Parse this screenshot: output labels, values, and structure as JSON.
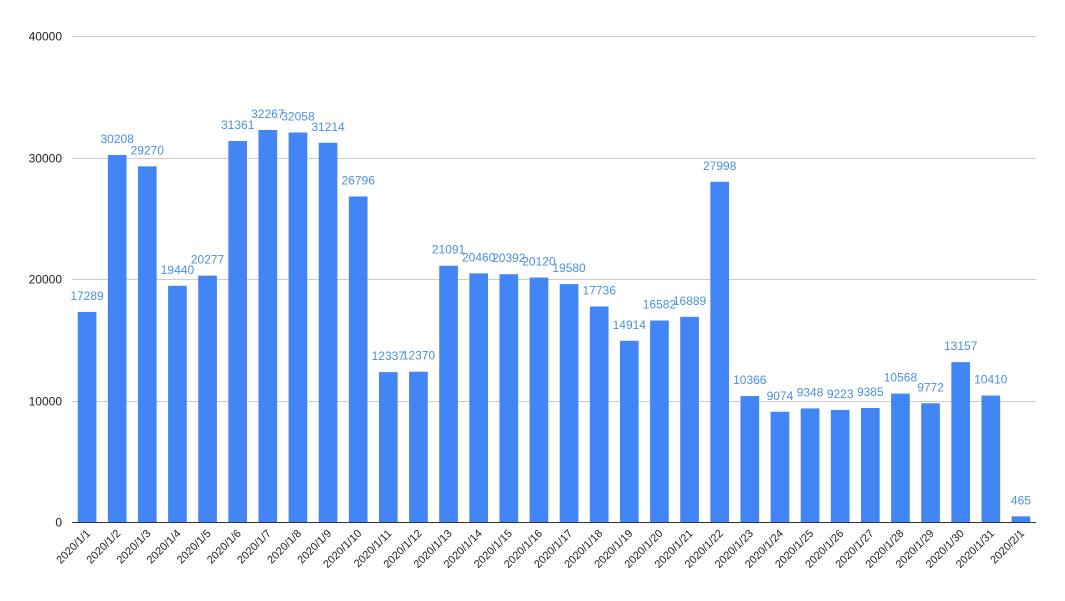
{
  "chart_data": {
    "type": "bar",
    "title": "",
    "xlabel": "",
    "ylabel": "",
    "ylim": [
      0,
      40000
    ],
    "yticks": [
      0,
      10000,
      20000,
      30000,
      40000
    ],
    "grid": true,
    "legend": "none",
    "bar_color": "#4285f4",
    "label_color": "#4a90e2",
    "categories": [
      "2020/1/1",
      "2020/1/2",
      "2020/1/3",
      "2020/1/4",
      "2020/1/5",
      "2020/1/6",
      "2020/1/7",
      "2020/1/8",
      "2020/1/9",
      "2020/1/10",
      "2020/1/11",
      "2020/1/12",
      "2020/1/13",
      "2020/1/14",
      "2020/1/15",
      "2020/1/16",
      "2020/1/17",
      "2020/1/18",
      "2020/1/19",
      "2020/1/20",
      "2020/1/21",
      "2020/1/22",
      "2020/1/23",
      "2020/1/24",
      "2020/1/25",
      "2020/1/26",
      "2020/1/27",
      "2020/1/28",
      "2020/1/29",
      "2020/1/30",
      "2020/1/31",
      "2020/2/1"
    ],
    "values": [
      17289,
      30208,
      29270,
      19440,
      20277,
      31361,
      32267,
      32058,
      31214,
      26796,
      12337,
      12370,
      21091,
      20460,
      20392,
      20120,
      19580,
      17736,
      14914,
      16582,
      16889,
      27998,
      10366,
      9074,
      9348,
      9223,
      9385,
      10568,
      9772,
      13157,
      10410,
      465
    ]
  }
}
